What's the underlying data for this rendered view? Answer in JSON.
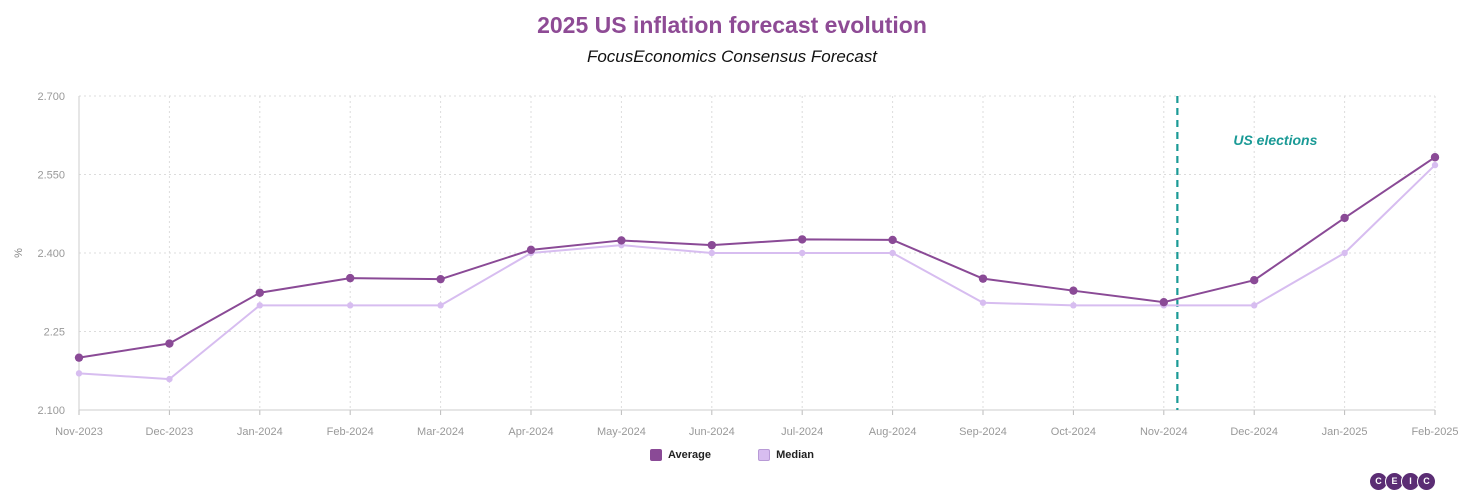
{
  "header": {
    "title": "2025 US inflation forecast evolution",
    "subtitle": "FocusEconomics Consensus Forecast"
  },
  "colors": {
    "title": "#8e4b95",
    "average": "#8a4a96",
    "median": "#d7bdf0",
    "election_line": "#1a9a96",
    "grid": "#dcdcdc"
  },
  "legend": {
    "items": [
      {
        "label": "Average",
        "color": "#8a4a96"
      },
      {
        "label": "Median",
        "color": "#d7bdf0"
      }
    ]
  },
  "logo": {
    "letters": [
      "C",
      "E",
      "I",
      "C"
    ]
  },
  "chart_data": {
    "type": "line",
    "title": "2025 US inflation forecast evolution",
    "subtitle": "FocusEconomics Consensus Forecast",
    "xlabel": "",
    "ylabel": "%",
    "ylim": [
      2.1,
      2.7
    ],
    "yticks": [
      "2.700",
      "2.550",
      "2.400",
      "2.25",
      "2.100"
    ],
    "ytick_values": [
      2.7,
      2.55,
      2.4,
      2.25,
      2.1
    ],
    "grid": true,
    "legend_position": "bottom",
    "categories": [
      "Nov-2023",
      "Dec-2023",
      "Jan-2024",
      "Feb-2024",
      "Mar-2024",
      "Apr-2024",
      "May-2024",
      "Jun-2024",
      "Jul-2024",
      "Aug-2024",
      "Sep-2024",
      "Oct-2024",
      "Nov-2024",
      "Dec-2024",
      "Jan-2025",
      "Feb-2025"
    ],
    "series": [
      {
        "name": "Average",
        "values": [
          2.2,
          2.227,
          2.324,
          2.352,
          2.35,
          2.406,
          2.424,
          2.415,
          2.426,
          2.425,
          2.351,
          2.328,
          2.306,
          2.348,
          2.467,
          2.583
        ]
      },
      {
        "name": "Median",
        "values": [
          2.17,
          2.159,
          2.3,
          2.3,
          2.3,
          2.4,
          2.415,
          2.4,
          2.4,
          2.4,
          2.305,
          2.3,
          2.3,
          2.3,
          2.4,
          2.568
        ]
      }
    ],
    "annotations": [
      {
        "text": "US elections",
        "x_category_index": 12.15
      }
    ]
  }
}
